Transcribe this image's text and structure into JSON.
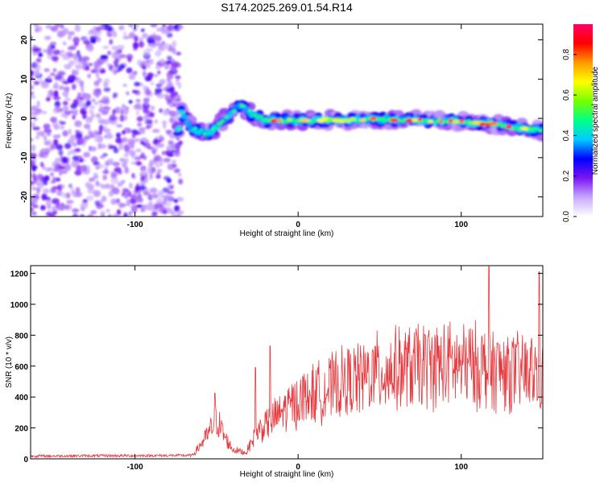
{
  "title": "S174.2025.269.01.54.R14",
  "chart_data": [
    {
      "type": "heatmap",
      "xlabel": "Height of straight line (km)",
      "ylabel": "Frequency (Hz)",
      "xlim": [
        -164,
        150
      ],
      "ylim": [
        -25,
        24
      ],
      "x_ticks": [
        -100,
        0,
        100
      ],
      "y_ticks": [
        -20,
        -10,
        0,
        10,
        20
      ],
      "colorbar": {
        "label": "Normalized spectral amplitude",
        "range": [
          0.0,
          0.95
        ],
        "ticks": [
          0.0,
          0.2,
          0.4,
          0.6,
          0.8
        ],
        "tick_labels": [
          "0.0",
          "0.2",
          "0.4",
          "0.6",
          "0.8"
        ],
        "colors": [
          "#ffffff",
          "#c7a8ff",
          "#7a16f0",
          "#0000ff",
          "#00ccff",
          "#00ff88",
          "#77ff00",
          "#ffff00",
          "#ff9900",
          "#ff0000",
          "#ff0066"
        ]
      },
      "noise_region_x": [
        -164,
        -72
      ],
      "signal_path": [
        {
          "x": -72,
          "y": 2.0
        },
        {
          "x": -65,
          "y": -2.5
        },
        {
          "x": -55,
          "y": -4.0
        },
        {
          "x": -45,
          "y": 0.0
        },
        {
          "x": -35,
          "y": 3.5
        },
        {
          "x": -28,
          "y": 1.0
        },
        {
          "x": -20,
          "y": -0.5
        },
        {
          "x": 0,
          "y": -0.5
        },
        {
          "x": 50,
          "y": -0.3
        },
        {
          "x": 100,
          "y": -0.8
        },
        {
          "x": 120,
          "y": -1.5
        },
        {
          "x": 135,
          "y": -2.5
        },
        {
          "x": 150,
          "y": -3.0
        }
      ]
    },
    {
      "type": "line",
      "xlabel": "Height of straight line (km)",
      "ylabel": "SNR (10 * v/v)",
      "xlim": [
        -164,
        150
      ],
      "ylim": [
        0,
        1250
      ],
      "x_ticks": [
        -100,
        0,
        100
      ],
      "y_ticks": [
        0,
        200,
        400,
        600,
        800,
        1000,
        1200
      ],
      "color": "#e8383d",
      "trend": [
        {
          "x": -164,
          "y": 18
        },
        {
          "x": -65,
          "y": 22
        },
        {
          "x": -62,
          "y": 60
        },
        {
          "x": -55,
          "y": 160
        },
        {
          "x": -50,
          "y": 260
        },
        {
          "x": -45,
          "y": 140
        },
        {
          "x": -40,
          "y": 60
        },
        {
          "x": -32,
          "y": 40
        },
        {
          "x": -25,
          "y": 180
        },
        {
          "x": -15,
          "y": 260
        },
        {
          "x": 0,
          "y": 380
        },
        {
          "x": 25,
          "y": 480
        },
        {
          "x": 50,
          "y": 560
        },
        {
          "x": 80,
          "y": 610
        },
        {
          "x": 110,
          "y": 600
        },
        {
          "x": 130,
          "y": 560
        },
        {
          "x": 150,
          "y": 550
        }
      ],
      "spikes": [
        {
          "x": -51,
          "y": 425
        },
        {
          "x": -26,
          "y": 590
        },
        {
          "x": -17,
          "y": 730
        },
        {
          "x": 117,
          "y": 1245
        },
        {
          "x": 148,
          "y": 1210
        }
      ]
    }
  ]
}
